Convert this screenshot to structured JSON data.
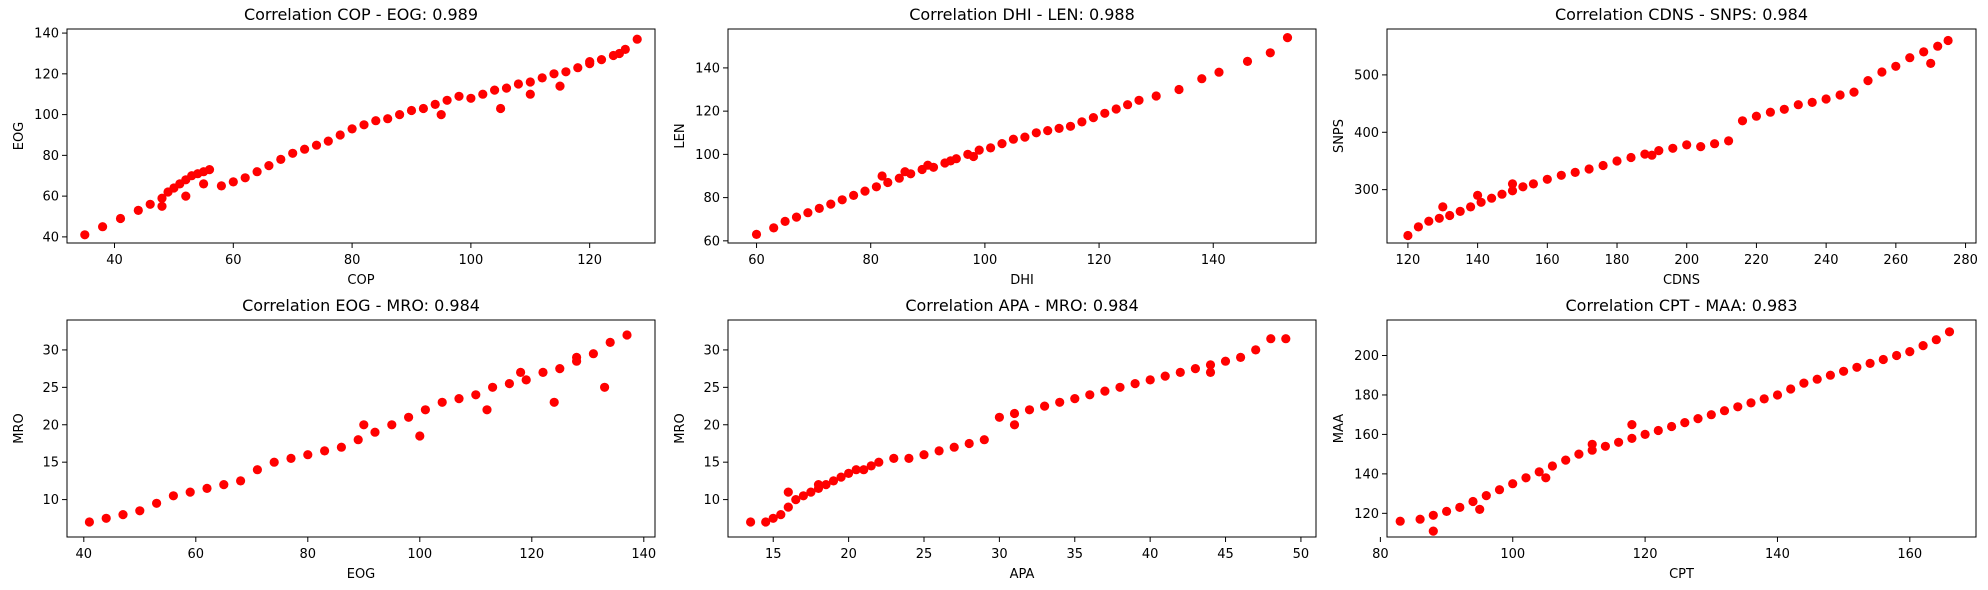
{
  "colors": {
    "marker": "#ff0000",
    "axes": "#000000",
    "background": "#ffffff"
  },
  "chart_data": [
    {
      "type": "scatter",
      "title": "Correlation COP - EOG: 0.989",
      "xlabel": "COP",
      "ylabel": "EOG",
      "xlim": [
        32,
        131
      ],
      "ylim": [
        37,
        142
      ],
      "xticks": [
        40,
        60,
        80,
        100,
        120
      ],
      "yticks": [
        40,
        60,
        80,
        100,
        120,
        140
      ],
      "x": [
        35,
        38,
        41,
        44,
        46,
        48,
        49,
        50,
        51,
        52,
        53,
        54,
        55,
        56,
        58,
        60,
        62,
        64,
        66,
        68,
        70,
        72,
        74,
        76,
        78,
        80,
        82,
        84,
        86,
        88,
        90,
        92,
        94,
        96,
        98,
        100,
        102,
        104,
        106,
        108,
        110,
        112,
        114,
        116,
        118,
        120,
        122,
        124,
        126,
        128,
        48,
        52,
        55,
        95,
        105,
        110,
        115,
        120,
        125
      ],
      "y": [
        41,
        45,
        49,
        53,
        56,
        59,
        62,
        64,
        66,
        68,
        70,
        71,
        72,
        73,
        65,
        67,
        69,
        72,
        75,
        78,
        81,
        83,
        85,
        87,
        90,
        93,
        95,
        97,
        98,
        100,
        102,
        103,
        105,
        107,
        109,
        108,
        110,
        112,
        113,
        115,
        116,
        118,
        120,
        121,
        123,
        125,
        127,
        129,
        132,
        137,
        55,
        60,
        66,
        100,
        103,
        110,
        114,
        126,
        130
      ]
    },
    {
      "type": "scatter",
      "title": "Correlation DHI - LEN: 0.988",
      "xlabel": "DHI",
      "ylabel": "LEN",
      "xlim": [
        55,
        158
      ],
      "ylim": [
        59,
        158
      ],
      "xticks": [
        60,
        80,
        100,
        120,
        140
      ],
      "yticks": [
        60,
        80,
        100,
        120,
        140
      ],
      "x": [
        60,
        63,
        65,
        67,
        69,
        71,
        73,
        75,
        77,
        79,
        81,
        83,
        85,
        87,
        89,
        91,
        93,
        95,
        97,
        99,
        101,
        103,
        105,
        107,
        109,
        111,
        113,
        115,
        117,
        119,
        121,
        123,
        125,
        127,
        130,
        134,
        138,
        141,
        146,
        150,
        153,
        82,
        86,
        90,
        94,
        98
      ],
      "y": [
        63,
        66,
        69,
        71,
        73,
        75,
        77,
        79,
        81,
        83,
        85,
        87,
        89,
        91,
        93,
        94,
        96,
        98,
        100,
        102,
        103,
        105,
        107,
        108,
        110,
        111,
        112,
        113,
        115,
        117,
        119,
        121,
        123,
        125,
        127,
        130,
        135,
        138,
        143,
        147,
        154,
        90,
        92,
        95,
        97,
        99
      ]
    },
    {
      "type": "scatter",
      "title": "Correlation CDNS - SNPS: 0.984",
      "xlabel": "CDNS",
      "ylabel": "SNPS",
      "xlim": [
        114,
        283
      ],
      "ylim": [
        207,
        580
      ],
      "xticks": [
        120,
        140,
        160,
        180,
        200,
        220,
        240,
        260,
        280
      ],
      "yticks": [
        300,
        400,
        500
      ],
      "x": [
        120,
        123,
        126,
        129,
        132,
        135,
        138,
        141,
        144,
        147,
        150,
        153,
        156,
        160,
        164,
        168,
        172,
        176,
        180,
        184,
        188,
        192,
        196,
        200,
        204,
        208,
        212,
        216,
        220,
        224,
        228,
        232,
        236,
        240,
        244,
        248,
        252,
        256,
        260,
        264,
        268,
        272,
        275,
        130,
        140,
        150,
        190,
        270
      ],
      "y": [
        220,
        235,
        245,
        250,
        255,
        262,
        270,
        278,
        285,
        292,
        298,
        305,
        310,
        318,
        325,
        330,
        336,
        342,
        350,
        356,
        362,
        368,
        372,
        378,
        375,
        380,
        385,
        420,
        428,
        435,
        440,
        448,
        452,
        458,
        465,
        470,
        490,
        505,
        515,
        530,
        540,
        550,
        560,
        270,
        290,
        310,
        360,
        520
      ]
    },
    {
      "type": "scatter",
      "title": "Correlation EOG - MRO: 0.984",
      "xlabel": "EOG",
      "ylabel": "MRO",
      "xlim": [
        37,
        142
      ],
      "ylim": [
        5,
        34
      ],
      "xticks": [
        40,
        60,
        80,
        100,
        120,
        140
      ],
      "yticks": [
        10,
        15,
        20,
        25,
        30
      ],
      "x": [
        41,
        44,
        47,
        50,
        53,
        56,
        59,
        62,
        65,
        68,
        71,
        74,
        77,
        80,
        83,
        86,
        89,
        92,
        95,
        98,
        101,
        104,
        107,
        110,
        113,
        116,
        119,
        122,
        125,
        128,
        131,
        134,
        137,
        90,
        100,
        112,
        118,
        124,
        128,
        133
      ],
      "y": [
        7,
        7.5,
        8,
        8.5,
        9.5,
        10.5,
        11,
        11.5,
        12,
        12.5,
        14,
        15,
        15.5,
        16,
        16.5,
        17,
        18,
        19,
        20,
        21,
        22,
        23,
        23.5,
        24,
        25,
        25.5,
        26,
        27,
        27.5,
        28.5,
        29.5,
        31,
        32,
        20,
        18.5,
        22,
        27,
        23,
        29,
        25
      ]
    },
    {
      "type": "scatter",
      "title": "Correlation APA - MRO: 0.984",
      "xlabel": "APA",
      "ylabel": "MRO",
      "xlim": [
        12,
        51
      ],
      "ylim": [
        5,
        34
      ],
      "xticks": [
        15,
        20,
        25,
        30,
        35,
        40,
        45,
        50
      ],
      "yticks": [
        10,
        15,
        20,
        25,
        30
      ],
      "x": [
        13.5,
        14.5,
        15,
        15.5,
        16,
        16.5,
        17,
        17.5,
        18,
        18.5,
        19,
        19.5,
        20,
        20.5,
        21,
        21.5,
        22,
        23,
        24,
        25,
        26,
        27,
        28,
        29,
        30,
        31,
        32,
        33,
        34,
        35,
        36,
        37,
        38,
        39,
        40,
        41,
        42,
        43,
        44,
        45,
        46,
        47,
        48,
        49,
        16,
        18,
        31,
        44
      ],
      "y": [
        7,
        7,
        7.5,
        8,
        9,
        10,
        10.5,
        11,
        11.5,
        12,
        12.5,
        13,
        13.5,
        14,
        14,
        14.5,
        15,
        15.5,
        15.5,
        16,
        16.5,
        17,
        17.5,
        18,
        21,
        21.5,
        22,
        22.5,
        23,
        23.5,
        24,
        24.5,
        25,
        25.5,
        26,
        26.5,
        27,
        27.5,
        28,
        28.5,
        29,
        30,
        31.5,
        31.5,
        11,
        12,
        20,
        27
      ]
    },
    {
      "type": "scatter",
      "title": "Correlation CPT - MAA: 0.983",
      "xlabel": "CPT",
      "ylabel": "MAA",
      "xlim": [
        81,
        170
      ],
      "ylim": [
        108,
        218
      ],
      "xticks": [
        80,
        100,
        120,
        140,
        160
      ],
      "yticks": [
        120,
        140,
        160,
        180,
        200
      ],
      "x": [
        83,
        86,
        88,
        90,
        92,
        94,
        96,
        98,
        100,
        102,
        104,
        106,
        108,
        110,
        112,
        114,
        116,
        118,
        120,
        122,
        124,
        126,
        128,
        130,
        132,
        134,
        136,
        138,
        140,
        142,
        144,
        146,
        148,
        150,
        152,
        154,
        156,
        158,
        160,
        162,
        164,
        166,
        88,
        95,
        105,
        112,
        118
      ],
      "y": [
        116,
        117,
        119,
        121,
        123,
        126,
        129,
        132,
        135,
        138,
        141,
        144,
        147,
        150,
        152,
        154,
        156,
        158,
        160,
        162,
        164,
        166,
        168,
        170,
        172,
        174,
        176,
        178,
        180,
        183,
        186,
        188,
        190,
        192,
        194,
        196,
        198,
        200,
        202,
        205,
        208,
        212,
        111,
        122,
        138,
        155,
        165
      ]
    }
  ]
}
